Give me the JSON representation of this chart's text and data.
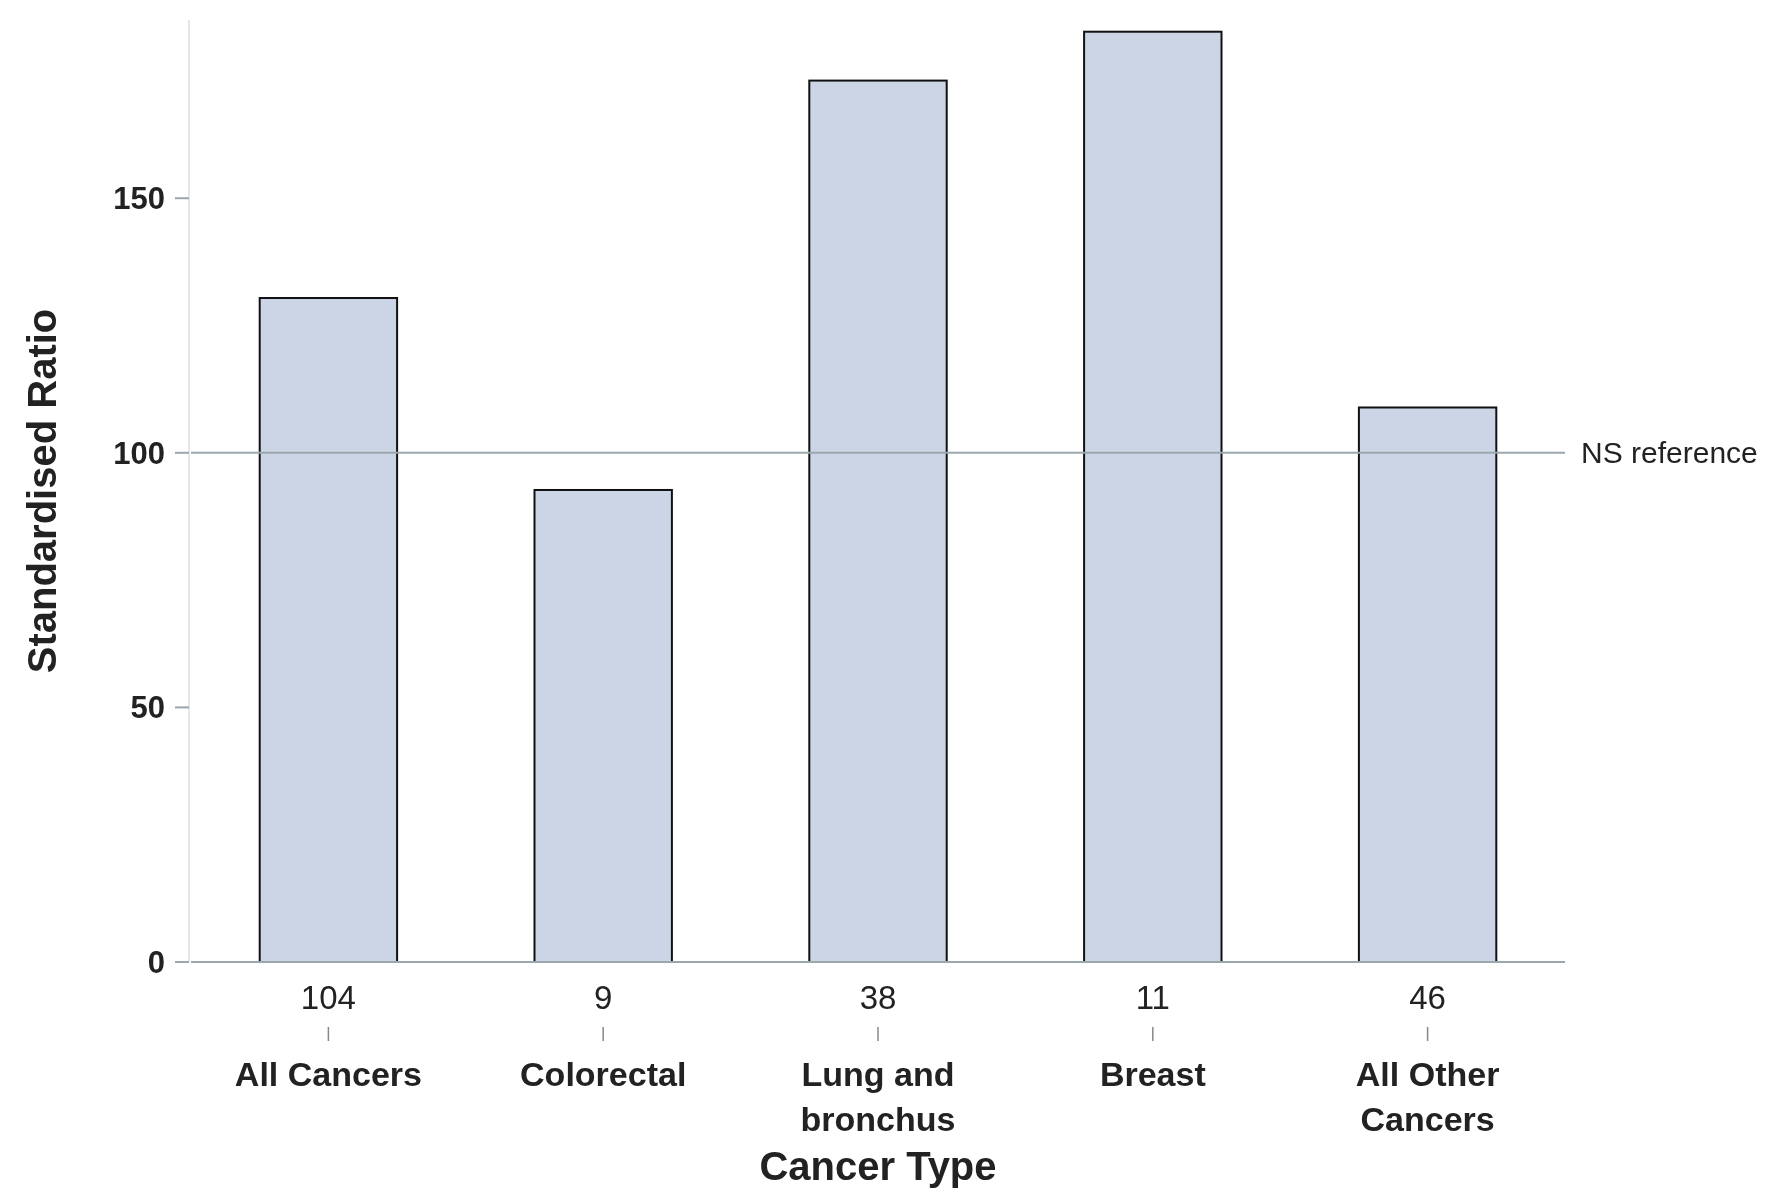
{
  "chart_data": {
    "type": "bar",
    "xlabel": "Cancer Type",
    "ylabel": "Standardised Ratio",
    "categories": [
      "All Cancers",
      "Colorectal",
      "Lung and bronchus",
      "Breast",
      "All Other Cancers"
    ],
    "values": [
      130.4,
      92.7,
      173.1,
      182.7,
      108.9
    ],
    "color": "#cbd5e6",
    "ylim": [
      0,
      185
    ],
    "yticks": [
      0,
      50,
      100,
      150
    ],
    "grid": false,
    "ref_lines": [
      {
        "axis": "y",
        "value": 100,
        "label": "NS reference",
        "color": "#9aa8ad"
      }
    ],
    "annotations": [
      {
        "text": "104",
        "x": "All Cancers"
      },
      {
        "text": "9",
        "x": "Colorectal"
      },
      {
        "text": "38",
        "x": "Lung and bronchus"
      },
      {
        "text": "11",
        "x": "Breast"
      },
      {
        "text": "46",
        "x": "All Other Cancers"
      }
    ]
  }
}
